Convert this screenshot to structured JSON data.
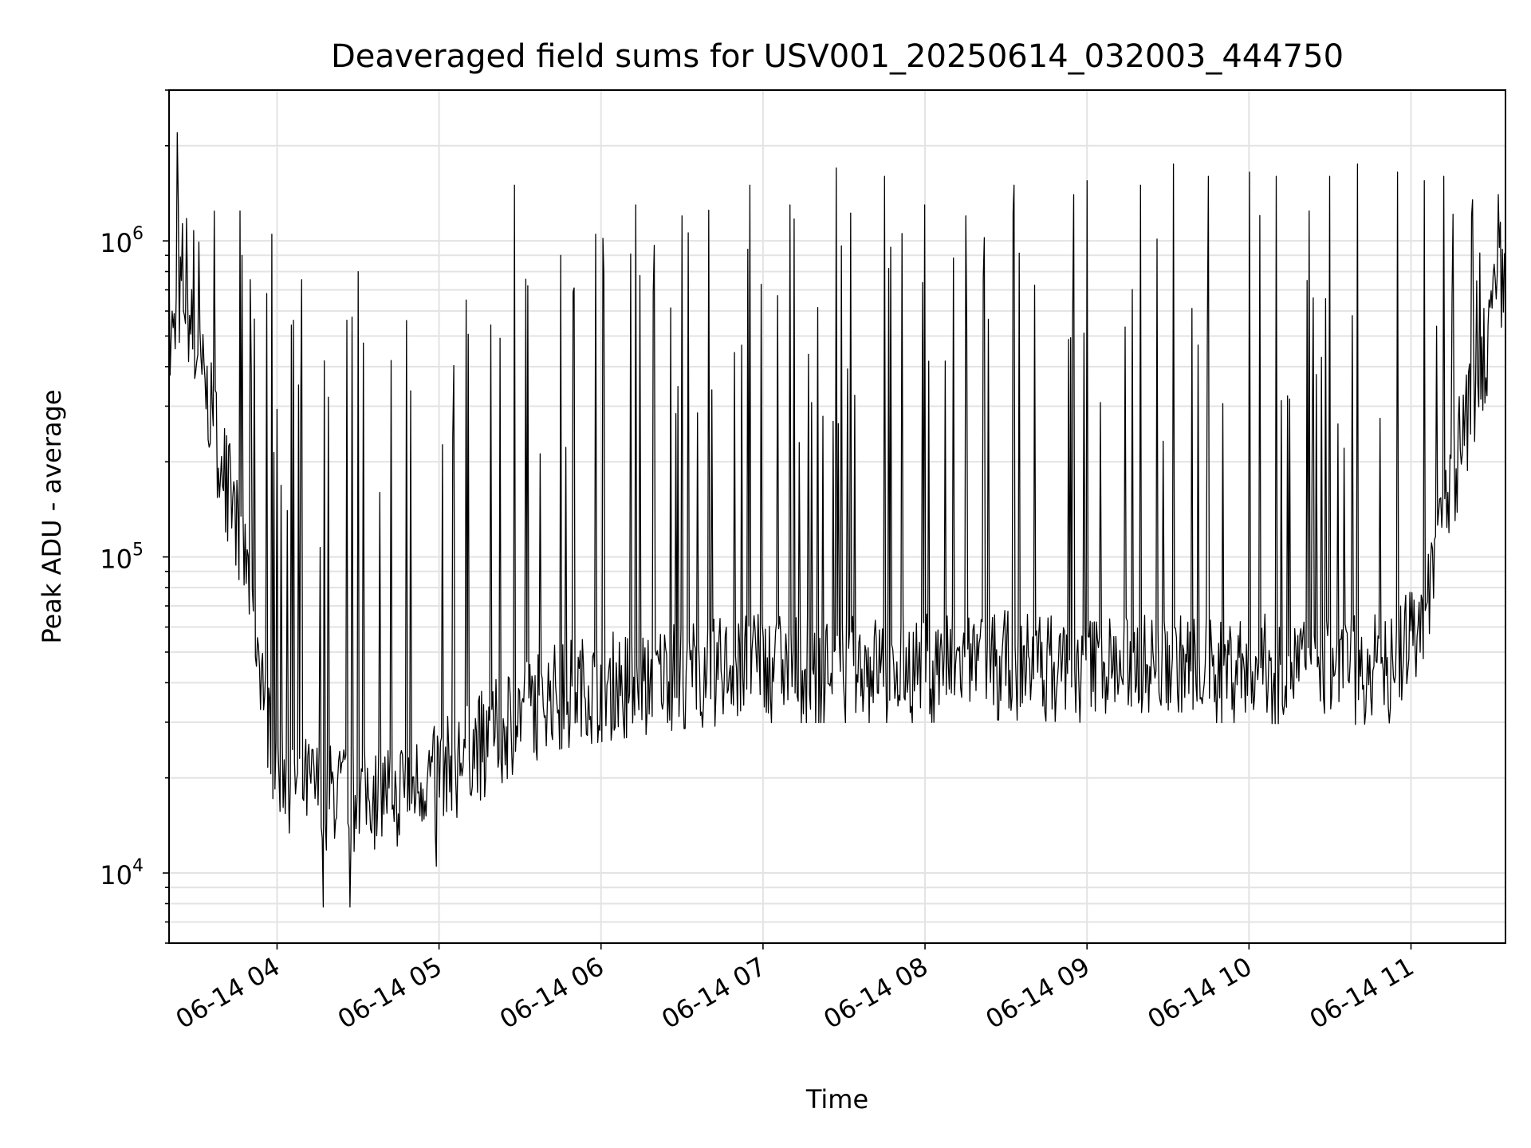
{
  "chart_data": {
    "type": "line",
    "title": "Deaveraged field sums for USV001_20250614_032003_444750",
    "xlabel": "Time",
    "ylabel": "Peak ADU - average",
    "yscale": "log",
    "ylim": [
      6000,
      3000000
    ],
    "xlim": [
      "2025-06-14 03:20",
      "2025-06-14 11:35"
    ],
    "grid": true,
    "line_color": "#000000",
    "x_ticks": [
      {
        "label": "06-14 04",
        "time": "2025-06-14 04:00"
      },
      {
        "label": "06-14 05",
        "time": "2025-06-14 05:00"
      },
      {
        "label": "06-14 06",
        "time": "2025-06-14 06:00"
      },
      {
        "label": "06-14 07",
        "time": "2025-06-14 07:00"
      },
      {
        "label": "06-14 08",
        "time": "2025-06-14 08:00"
      },
      {
        "label": "06-14 09",
        "time": "2025-06-14 09:00"
      },
      {
        "label": "06-14 10",
        "time": "2025-06-14 10:00"
      },
      {
        "label": "06-14 11",
        "time": "2025-06-14 11:00"
      }
    ],
    "y_ticks": [
      {
        "value": 10000,
        "base": "10",
        "exp": "4"
      },
      {
        "value": 100000,
        "base": "10",
        "exp": "5"
      },
      {
        "value": 1000000,
        "base": "10",
        "exp": "6"
      }
    ],
    "series": [
      {
        "x": [
          "2025-06-14 03:20",
          "2025-06-14 03:25",
          "2025-06-14 03:30",
          "2025-06-14 03:35",
          "2025-06-14 03:40",
          "2025-06-14 03:45",
          "2025-06-14 03:50",
          "2025-06-14 03:55",
          "2025-06-14 04:00",
          "2025-06-14 04:10",
          "2025-06-14 04:20",
          "2025-06-14 04:30",
          "2025-06-14 04:40",
          "2025-06-14 04:50",
          "2025-06-14 05:00",
          "2025-06-14 05:15",
          "2025-06-14 05:30",
          "2025-06-14 05:45",
          "2025-06-14 06:00",
          "2025-06-14 06:30",
          "2025-06-14 07:00",
          "2025-06-14 07:30",
          "2025-06-14 08:00",
          "2025-06-14 08:30",
          "2025-06-14 09:00",
          "2025-06-14 09:30",
          "2025-06-14 10:00",
          "2025-06-14 10:30",
          "2025-06-14 10:55",
          "2025-06-14 11:05",
          "2025-06-14 11:15",
          "2025-06-14 11:25",
          "2025-06-14 11:35"
        ],
        "y": [
          450000,
          700000,
          450000,
          300000,
          200000,
          130000,
          80000,
          40000,
          22000,
          19000,
          18000,
          18000,
          18500,
          19000,
          21000,
          26000,
          33000,
          38000,
          40000,
          44000,
          46000,
          46000,
          46000,
          47000,
          46000,
          46000,
          46000,
          45000,
          46000,
          75000,
          180000,
          400000,
          800000
        ]
      }
    ],
    "spikes": [
      {
        "time": "2025-06-14 03:23",
        "value": 2200000
      },
      {
        "time": "2025-06-14 03:47",
        "value": 900000
      },
      {
        "time": "2025-06-14 03:58",
        "value": 1050000
      },
      {
        "time": "2025-06-14 04:08",
        "value": 350000
      },
      {
        "time": "2025-06-14 04:19",
        "value": 320000
      },
      {
        "time": "2025-06-14 04:30",
        "value": 800000
      },
      {
        "time": "2025-06-14 04:48",
        "value": 560000
      },
      {
        "time": "2025-06-14 05:10",
        "value": 650000
      },
      {
        "time": "2025-06-14 05:28",
        "value": 1500000
      },
      {
        "time": "2025-06-14 05:45",
        "value": 900000
      },
      {
        "time": "2025-06-14 05:58",
        "value": 1050000
      },
      {
        "time": "2025-06-14 06:13",
        "value": 1300000
      },
      {
        "time": "2025-06-14 06:30",
        "value": 1200000
      },
      {
        "time": "2025-06-14 06:40",
        "value": 1250000
      },
      {
        "time": "2025-06-14 06:55",
        "value": 1500000
      },
      {
        "time": "2025-06-14 07:10",
        "value": 1300000
      },
      {
        "time": "2025-06-14 07:27",
        "value": 1700000
      },
      {
        "time": "2025-06-14 07:45",
        "value": 1600000
      },
      {
        "time": "2025-06-14 08:00",
        "value": 1300000
      },
      {
        "time": "2025-06-14 08:15",
        "value": 1200000
      },
      {
        "time": "2025-06-14 08:33",
        "value": 1500000
      },
      {
        "time": "2025-06-14 08:55",
        "value": 1400000
      },
      {
        "time": "2025-06-14 09:00",
        "value": 1550000
      },
      {
        "time": "2025-06-14 09:20",
        "value": 1500000
      },
      {
        "time": "2025-06-14 09:32",
        "value": 1750000
      },
      {
        "time": "2025-06-14 09:45",
        "value": 1600000
      },
      {
        "time": "2025-06-14 10:00",
        "value": 1650000
      },
      {
        "time": "2025-06-14 10:10",
        "value": 1600000
      },
      {
        "time": "2025-06-14 10:30",
        "value": 1600000
      },
      {
        "time": "2025-06-14 10:40",
        "value": 1750000
      },
      {
        "time": "2025-06-14 10:55",
        "value": 1650000
      },
      {
        "time": "2025-06-14 11:05",
        "value": 1550000
      },
      {
        "time": "2025-06-14 11:12",
        "value": 1600000
      }
    ],
    "dips": [
      {
        "time": "2025-06-14 04:17",
        "value": 7800
      },
      {
        "time": "2025-06-14 04:27",
        "value": 7800
      },
      {
        "time": "2025-06-14 04:59",
        "value": 10500
      }
    ]
  }
}
